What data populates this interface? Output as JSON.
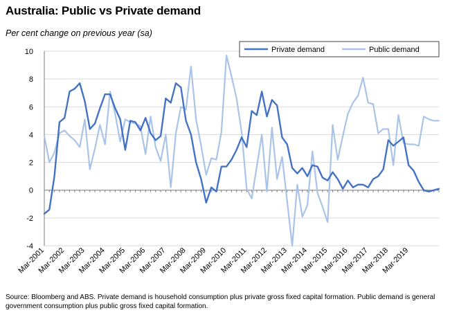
{
  "chart_data": {
    "type": "line",
    "title": "Australia: Public vs Private demand",
    "subtitle": "Per cent change on previous year (sa)",
    "xlabel": "",
    "ylabel": "",
    "ylim": [
      -4,
      10
    ],
    "yticks": [
      "10",
      "8",
      "6",
      "4",
      "2",
      "0",
      "-2",
      "-4"
    ],
    "ytick_values": [
      10,
      8,
      6,
      4,
      2,
      0,
      -2,
      -4
    ],
    "xtick_labels": [
      "Mar-2001",
      "Mar-2002",
      "Mar-2003",
      "Mar-2004",
      "Mar-2005",
      "Mar-2006",
      "Mar-2007",
      "Mar-2008",
      "Mar-2009",
      "Mar-2010",
      "Mar-2011",
      "Mar-2012",
      "Mar-2013",
      "Mar-2014",
      "Mar-2015",
      "Mar-2016",
      "Mar-2017",
      "Mar-2018",
      "Mar-2019"
    ],
    "legend": "top-right",
    "series": [
      {
        "name": "Private demand",
        "color": "#4472c4",
        "values": [
          -1.7,
          -1.4,
          1.0,
          4.9,
          5.2,
          7.1,
          7.3,
          7.7,
          6.4,
          4.4,
          4.8,
          5.9,
          6.9,
          6.9,
          5.9,
          5.1,
          2.9,
          5.0,
          4.9,
          4.3,
          5.2,
          4.1,
          3.6,
          3.9,
          6.6,
          6.3,
          7.7,
          7.4,
          5.0,
          4.0,
          2.0,
          0.8,
          -0.9,
          0.2,
          -0.1,
          1.7,
          1.7,
          2.2,
          2.9,
          3.8,
          3.1,
          5.7,
          5.4,
          7.1,
          5.3,
          6.5,
          6.1,
          3.8,
          3.3,
          1.6,
          1.2,
          1.6,
          1.0,
          1.8,
          1.7,
          0.9,
          0.7,
          1.3,
          0.8,
          0.1,
          0.7,
          0.2,
          0.4,
          0.4,
          0.2,
          0.8,
          1.0,
          1.5,
          3.6,
          3.2,
          3.5,
          3.8,
          1.8,
          1.4,
          0.6,
          0.0,
          -0.1,
          0.0,
          0.1
        ]
      },
      {
        "name": "Public demand",
        "color": "#a9c4e8",
        "values": [
          3.9,
          2.0,
          2.7,
          4.1,
          4.3,
          3.9,
          3.6,
          3.1,
          5.1,
          1.5,
          3.0,
          4.7,
          3.3,
          7.1,
          5.5,
          3.5,
          5.1,
          4.9,
          4.8,
          4.6,
          2.6,
          5.3,
          3.1,
          2.1,
          4.0,
          0.2,
          4.1,
          6.0,
          5.8,
          8.9,
          5.1,
          3.2,
          1.1,
          2.3,
          2.2,
          4.2,
          9.7,
          8.2,
          6.6,
          4.2,
          0.1,
          -0.6,
          1.7,
          4.0,
          -0.1,
          4.5,
          0.8,
          2.4,
          -0.8,
          -4.0,
          0.4,
          -1.9,
          -1.1,
          2.8,
          -0.2,
          -1.2,
          -2.3,
          4.7,
          2.2,
          3.9,
          5.5,
          6.3,
          6.8,
          8.1,
          6.3,
          6.2,
          4.1,
          4.4,
          4.4,
          1.8,
          5.4,
          3.4,
          3.3,
          3.3,
          3.2,
          5.3,
          5.1,
          5.0,
          5.0
        ]
      }
    ]
  },
  "source_text": "Source: Bloomberg and ABS.  Private demand is household consumption plus private gross fixed capital formation.  Public demand is general government consumption plus public gross fixed capital formation."
}
